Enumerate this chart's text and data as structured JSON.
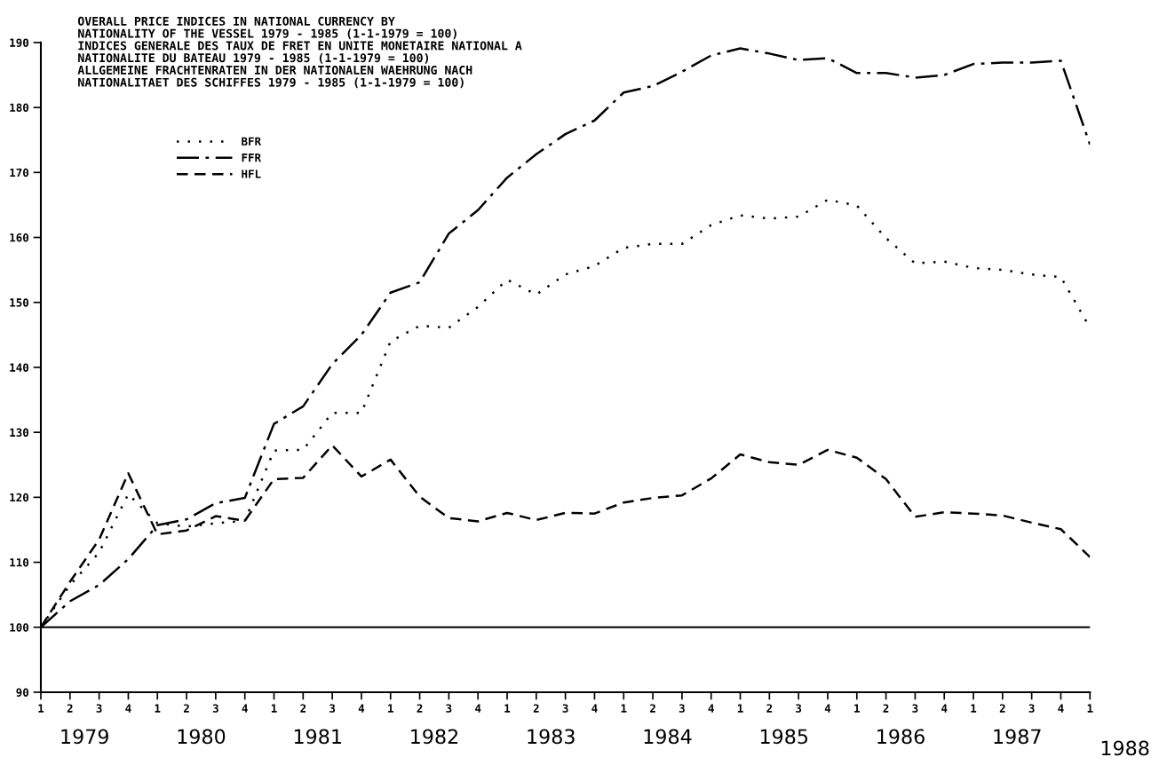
{
  "chart_data": {
    "type": "line",
    "title": "OVERALL PRICE INDICES IN NATIONAL CURRENCY BY\nNATIONALITY OF THE VESSEL 1979 - 1985 (1-1-1979 = 100)\nINDICES GENERALE DES TAUX DE FRET EN UNITE MONETAIRE NATIONAL A\nNATIONALITE DU BATEAU 1979 - 1985 (1-1-1979 = 100)\nALLGEMEINE FRACHTENRATEN IN DER NATIONALEN WAEHRUNG NACH\nNATIONALITAET DES SCHIFFES 1979 - 1985 (1-1-1979 = 100)",
    "categories": [
      "1",
      "2",
      "3",
      "4",
      "1",
      "2",
      "3",
      "4",
      "1",
      "2",
      "3",
      "4",
      "1",
      "2",
      "3",
      "4",
      "1",
      "2",
      "3",
      "4",
      "1",
      "2",
      "3",
      "4",
      "1",
      "2",
      "3",
      "4",
      "1",
      "2",
      "3",
      "4",
      "1",
      "2",
      "3",
      "4",
      "1"
    ],
    "annotations": [
      "1979",
      "1980",
      "1981",
      "1982",
      "1983",
      "1984",
      "1985",
      "1986",
      "1987",
      "1988"
    ],
    "ylim": [
      90,
      190
    ],
    "yticks": [
      90,
      100,
      110,
      120,
      130,
      140,
      150,
      160,
      170,
      180,
      190
    ],
    "grid": false,
    "legend": "top left",
    "marker": "none",
    "ref_lines": [
      {
        "axis": "y",
        "value": 100,
        "color": "#000000",
        "line_style": "solid"
      }
    ],
    "series": [
      {
        "name": "BFR",
        "color": "#000000",
        "line_style": "dotted",
        "values": [
          100,
          106.5,
          111.5,
          120.5,
          116,
          115.5,
          116,
          116.4,
          127.2,
          127.3,
          133,
          133,
          144,
          146.4,
          146.1,
          149.3,
          153.5,
          151.2,
          154.3,
          155.6,
          158.4,
          159,
          159,
          161.9,
          163.4,
          162.9,
          163.2,
          165.8,
          164.9,
          159.9,
          156,
          156.3,
          155.3,
          155,
          154.3,
          153.9,
          146.1
        ]
      },
      {
        "name": "FFR",
        "color": "#000000",
        "line_style": "dashdot",
        "values": [
          100,
          104,
          106.5,
          110.5,
          115.7,
          116.6,
          119.1,
          119.9,
          131.3,
          134,
          140.5,
          145,
          151.5,
          153.1,
          160.6,
          164.2,
          169.2,
          172.8,
          175.9,
          178,
          182.3,
          183.3,
          185.5,
          188,
          189.1,
          188.3,
          187.3,
          187.6,
          185.3,
          185.3,
          184.6,
          185,
          186.7,
          186.9,
          186.9,
          187.2,
          174.3
        ]
      },
      {
        "name": "HFL",
        "color": "#000000",
        "line_style": "dashed",
        "values": [
          100,
          107,
          113.5,
          123.7,
          114.3,
          114.9,
          117.1,
          116.4,
          122.8,
          123,
          128,
          123.2,
          125.8,
          120.1,
          116.8,
          116.3,
          117.6,
          116.5,
          117.6,
          117.5,
          119.2,
          119.9,
          120.3,
          122.9,
          126.6,
          125.4,
          125,
          127.3,
          126.1,
          122.8,
          117,
          117.7,
          117.5,
          117.2,
          116.1,
          115.1,
          110.8
        ]
      }
    ]
  }
}
